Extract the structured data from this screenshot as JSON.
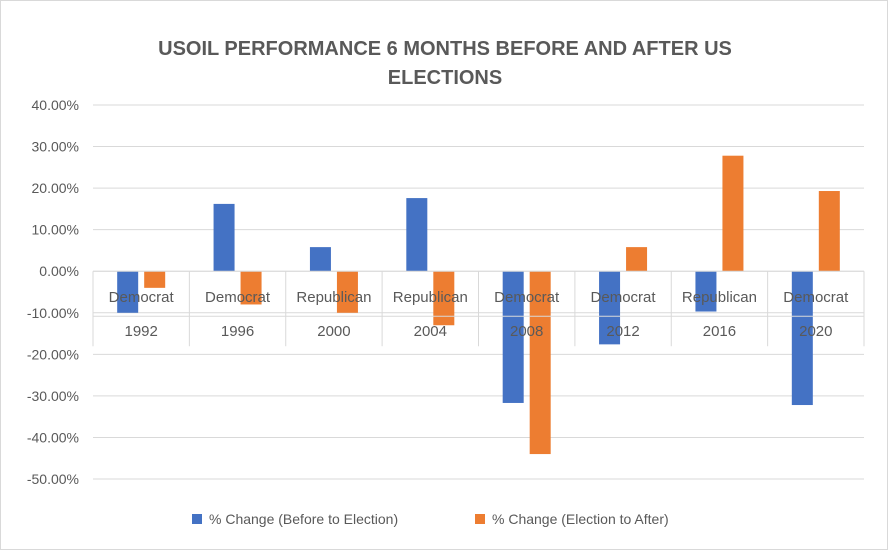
{
  "chart_data": {
    "type": "bar",
    "title_lines": [
      "USOIL PERFORMANCE 6 MONTHS BEFORE AND AFTER US",
      "ELECTIONS"
    ],
    "categories": [
      "1992",
      "1996",
      "2000",
      "2004",
      "2008",
      "2012",
      "2016",
      "2020"
    ],
    "parties": [
      "Democrat",
      "Democrat",
      "Republican",
      "Republican",
      "Democrat",
      "Democrat",
      "Republican",
      "Democrat"
    ],
    "series": [
      {
        "name": "% Change (Before to Election)",
        "color": "#4472c4",
        "values": [
          -10.0,
          16.2,
          5.8,
          17.6,
          -31.7,
          -17.6,
          -9.7,
          -32.2
        ]
      },
      {
        "name": "% Change (Election to After)",
        "color": "#ed7d31",
        "values": [
          -4.0,
          -8.0,
          -10.0,
          -13.0,
          -44.0,
          5.8,
          27.8,
          19.3
        ]
      }
    ],
    "ylim": [
      -50,
      40
    ],
    "yticks": [
      40,
      30,
      20,
      10,
      0,
      -10,
      -20,
      -30,
      -40,
      -50
    ],
    "ytick_labels": [
      "40.00%",
      "30.00%",
      "20.00%",
      "10.00%",
      "0.00%",
      "-10.00%",
      "-20.00%",
      "-30.00%",
      "-40.00%",
      "-50.00%"
    ],
    "grid": true,
    "legend_position": "bottom",
    "gridline_color": "#d9d9d9",
    "text_color": "#595959"
  }
}
